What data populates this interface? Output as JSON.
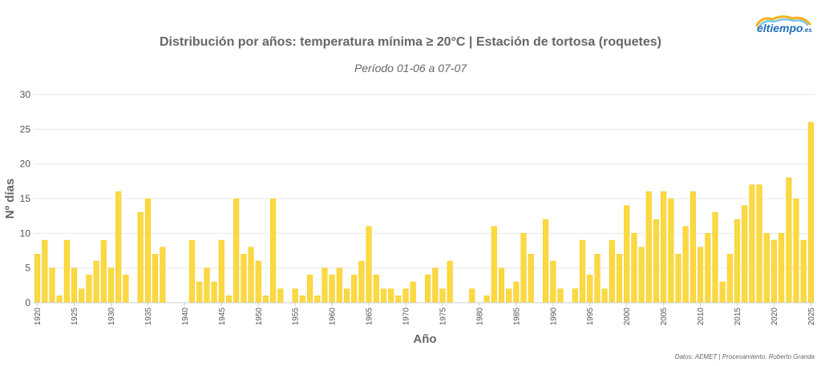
{
  "header": {
    "title": "Distribución por años: temperatura mínima ≥ 20°C | Estación de tortosa (roquetes)",
    "subtitle": "Período 01-06 a 07-07"
  },
  "logo": {
    "text": "eltiempo",
    "suffix": ".es"
  },
  "footer": {
    "credit": "Datos: AEMET | Procesamiento: Roberto Granda"
  },
  "colors": {
    "bar": "#fcd940",
    "bar_edge": "#f4c820",
    "grid": "#e8e8e8",
    "axis": "#cccccc"
  },
  "chart_data": {
    "type": "bar",
    "xlabel": "Año",
    "ylabel": "Nº días",
    "ylim": [
      0,
      30
    ],
    "yticks": [
      0,
      5,
      10,
      15,
      20,
      25,
      30
    ],
    "xticks": [
      1920,
      1925,
      1930,
      1935,
      1940,
      1945,
      1950,
      1955,
      1960,
      1965,
      1970,
      1975,
      1980,
      1985,
      1990,
      1995,
      2000,
      2005,
      2010,
      2015,
      2020,
      2025
    ],
    "xlim": [
      1920,
      2025
    ],
    "grid": true,
    "legend": "none",
    "points": [
      [
        1920,
        7
      ],
      [
        1921,
        9
      ],
      [
        1922,
        5
      ],
      [
        1923,
        1
      ],
      [
        1924,
        9
      ],
      [
        1925,
        5
      ],
      [
        1926,
        2
      ],
      [
        1927,
        4
      ],
      [
        1928,
        6
      ],
      [
        1929,
        9
      ],
      [
        1930,
        5
      ],
      [
        1931,
        16
      ],
      [
        1932,
        4
      ],
      [
        1934,
        13
      ],
      [
        1935,
        15
      ],
      [
        1936,
        7
      ],
      [
        1937,
        8
      ],
      [
        1941,
        9
      ],
      [
        1942,
        3
      ],
      [
        1943,
        5
      ],
      [
        1944,
        3
      ],
      [
        1945,
        9
      ],
      [
        1946,
        1
      ],
      [
        1947,
        15
      ],
      [
        1948,
        7
      ],
      [
        1949,
        8
      ],
      [
        1950,
        6
      ],
      [
        1951,
        1
      ],
      [
        1952,
        15
      ],
      [
        1953,
        2
      ],
      [
        1955,
        2
      ],
      [
        1956,
        1
      ],
      [
        1957,
        4
      ],
      [
        1958,
        1
      ],
      [
        1959,
        5
      ],
      [
        1960,
        4
      ],
      [
        1961,
        5
      ],
      [
        1962,
        2
      ],
      [
        1963,
        4
      ],
      [
        1964,
        6
      ],
      [
        1965,
        11
      ],
      [
        1966,
        4
      ],
      [
        1967,
        2
      ],
      [
        1968,
        2
      ],
      [
        1969,
        1
      ],
      [
        1970,
        2
      ],
      [
        1971,
        3
      ],
      [
        1973,
        4
      ],
      [
        1974,
        5
      ],
      [
        1975,
        2
      ],
      [
        1976,
        6
      ],
      [
        1979,
        2
      ],
      [
        1981,
        1
      ],
      [
        1982,
        11
      ],
      [
        1983,
        5
      ],
      [
        1984,
        2
      ],
      [
        1985,
        3
      ],
      [
        1986,
        10
      ],
      [
        1987,
        7
      ],
      [
        1989,
        12
      ],
      [
        1990,
        6
      ],
      [
        1991,
        2
      ],
      [
        1993,
        2
      ],
      [
        1994,
        9
      ],
      [
        1995,
        4
      ],
      [
        1996,
        7
      ],
      [
        1997,
        2
      ],
      [
        1998,
        9
      ],
      [
        1999,
        7
      ],
      [
        2000,
        14
      ],
      [
        2001,
        10
      ],
      [
        2002,
        8
      ],
      [
        2003,
        16
      ],
      [
        2004,
        12
      ],
      [
        2005,
        16
      ],
      [
        2006,
        15
      ],
      [
        2007,
        7
      ],
      [
        2008,
        11
      ],
      [
        2009,
        16
      ],
      [
        2010,
        8
      ],
      [
        2011,
        10
      ],
      [
        2012,
        13
      ],
      [
        2013,
        3
      ],
      [
        2014,
        7
      ],
      [
        2015,
        12
      ],
      [
        2016,
        14
      ],
      [
        2017,
        17
      ],
      [
        2018,
        17
      ],
      [
        2019,
        10
      ],
      [
        2020,
        9
      ],
      [
        2021,
        10
      ],
      [
        2022,
        18
      ],
      [
        2023,
        15
      ],
      [
        2024,
        9
      ],
      [
        2025,
        26
      ]
    ]
  }
}
